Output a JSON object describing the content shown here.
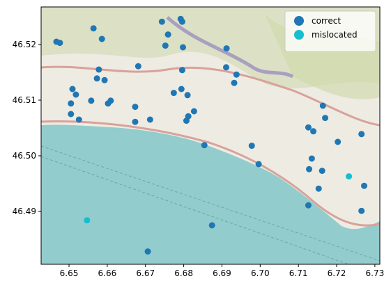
{
  "chart_data": {
    "type": "scatter",
    "xlim": [
      6.6427,
      6.7313
    ],
    "ylim": [
      46.4805,
      46.52675
    ],
    "xticks": [
      6.65,
      6.66,
      6.67,
      6.68,
      6.69,
      {
        "value": 6.7,
        "label": "6.70"
      },
      6.71,
      6.72,
      6.73
    ],
    "yticks": [
      46.49,
      {
        "value": 46.5,
        "label": "46.50"
      },
      46.51,
      46.52
    ],
    "legend": "upper right",
    "series": [
      {
        "name": "correct",
        "color": "#1f77b4",
        "x": [
          6.6467,
          6.6476,
          6.6564,
          6.6586,
          6.6743,
          6.6759,
          6.6752,
          6.6792,
          6.6796,
          6.6798,
          6.6912,
          6.6681,
          6.6578,
          6.6573,
          6.6593,
          6.6509,
          6.6518,
          6.6505,
          6.6505,
          6.6526,
          6.6558,
          6.6609,
          6.6602,
          6.6673,
          6.6673,
          6.6712,
          6.6796,
          6.6774,
          6.6794,
          6.681,
          6.6827,
          6.6812,
          6.6807,
          6.6911,
          6.6938,
          6.6932,
          6.6854,
          6.6978,
          6.6996,
          6.7126,
          6.7139,
          6.717,
          6.7164,
          6.7203,
          6.7265,
          6.7135,
          6.7128,
          6.7162,
          6.7153,
          6.7272,
          6.7126,
          6.7265,
          6.6874,
          6.6706
        ],
        "y": [
          46.5205,
          46.5203,
          46.5229,
          46.521,
          46.5241,
          46.5218,
          46.5198,
          46.5246,
          46.5241,
          46.5195,
          46.5193,
          46.5161,
          46.5155,
          46.5139,
          46.5136,
          46.512,
          46.511,
          46.5094,
          46.5075,
          46.5065,
          46.5099,
          46.5099,
          46.5094,
          46.5088,
          46.5061,
          46.5065,
          46.5154,
          46.5113,
          46.512,
          46.5109,
          46.508,
          46.5071,
          46.5063,
          46.5159,
          46.5146,
          46.5131,
          46.5019,
          46.5018,
          46.4985,
          46.5051,
          46.5044,
          46.5068,
          46.509,
          46.5025,
          46.5039,
          46.4995,
          46.4976,
          46.4973,
          46.4941,
          46.4946,
          46.4911,
          46.4901,
          46.4875,
          46.4828
        ]
      },
      {
        "name": "mislocated",
        "color": "#17becf",
        "x": [
          6.7232,
          6.6547
        ],
        "y": [
          46.4963,
          46.4884
        ]
      }
    ]
  }
}
